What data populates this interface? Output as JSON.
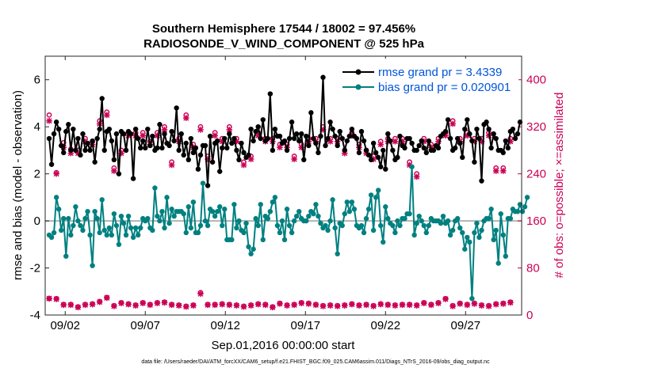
{
  "chart_data": {
    "type": "line",
    "title": "Southern Hemisphere 17544 / 18002 = 97.456%",
    "subtitle": "RADIOSONDE_V_WIND_COMPONENT @ 525 hPa",
    "xlabel": "Sep.01,2016 00:00:00 start",
    "ylabel": "rmse and bias (model - observation)",
    "y2label": "# of obs: o=possible; ×=assimilated",
    "footer": "data file: /Users/raeder/DAI/ATM_forcXX/CAM6_setup/f.e21.FHIST_BGC.f09_025.CAM6assim.011/Diags_NTrS_2016-09/obs_diag_output.nc",
    "xlim": [
      0.75,
      30.5
    ],
    "ylim": [
      -4,
      7
    ],
    "y2lim": [
      0,
      440
    ],
    "x_ticks": [
      2,
      7,
      12,
      17,
      22,
      27
    ],
    "x_tick_labels": [
      "09/02",
      "09/07",
      "09/12",
      "09/17",
      "09/22",
      "09/27"
    ],
    "y_ticks": [
      -4,
      -2,
      0,
      2,
      4,
      6
    ],
    "y2_ticks": [
      0,
      80,
      160,
      240,
      320,
      400
    ],
    "grid": false,
    "legend": {
      "position": "top-right",
      "entries": [
        "rmse grand pr = 3.4339",
        "bias grand pr = 0.020901"
      ]
    },
    "colors": {
      "rmse": "#000000",
      "bias": "#008080",
      "obs": "#cc0055",
      "legend_text": "#0055dd",
      "zero_line": "#b3b3b3"
    },
    "series": [
      {
        "name": "rmse",
        "y": [
          3.5,
          2.4,
          3.7,
          4.2,
          3.9,
          3.2,
          2.9,
          3.8,
          4.1,
          3.0,
          3.9,
          3.0,
          3.5,
          2.8,
          3.7,
          3.0,
          3.3,
          3.0,
          3.4,
          2.5,
          3.5,
          3.9,
          5.2,
          3.0,
          3.8,
          3.9,
          3.4,
          2.6,
          3.7,
          2.0,
          3.8,
          3.7,
          3.0,
          3.8,
          3.7,
          1.8,
          3.9,
          3.5,
          3.1,
          3.4,
          3.1,
          3.9,
          3.2,
          3.6,
          3.0,
          3.1,
          4.1,
          3.1,
          3.7,
          3.3,
          3.2,
          3.8,
          3.4,
          4.8,
          3.0,
          3.7,
          2.8,
          3.3,
          2.6,
          3.5,
          2.9,
          3.1,
          2.2,
          2.8,
          3.2,
          3.2,
          1.5,
          3.6,
          2.5,
          3.3,
          3.4,
          2.1,
          3.1,
          3.5,
          3.1,
          3.7,
          3.3,
          3.5,
          3.0,
          2.6,
          3.3,
          2.9,
          2.7,
          2.8,
          3.9,
          3.4,
          3.8,
          4.0,
          3.5,
          4.3,
          3.4,
          3.5,
          5.4,
          3.0,
          3.9,
          3.6,
          3.6,
          3.3,
          3.4,
          3.0,
          3.5,
          4.2,
          3.5,
          3.7,
          3.4,
          3.7,
          2.6,
          3.6,
          3.2,
          4.6,
          3.5,
          3.3,
          2.9,
          3.6,
          6.1,
          3.2,
          3.5,
          4.2,
          3.9,
          3.6,
          3.2,
          3.8,
          3.5,
          3.0,
          3.4,
          3.6,
          3.9,
          3.6,
          3.5,
          2.9,
          3.8,
          3.4,
          3.0,
          2.8,
          2.6,
          3.3,
          2.9,
          2.7,
          2.3,
          3.0,
          2.2,
          3.7,
          3.4,
          3.0,
          2.6,
          2.7,
          3.6,
          3.2,
          3.1,
          3.5,
          3.5,
          3.3,
          3.0,
          3.0,
          3.2,
          3.4,
          3.1,
          2.9,
          3.4,
          3.0,
          3.0,
          3.2,
          3.1,
          3.6,
          3.7,
          3.8,
          4.3,
          3.5,
          3.0,
          3.1,
          3.5,
          3.3,
          2.7,
          3.9,
          4.3,
          3.7,
          3.4,
          2.5,
          3.9,
          3.5,
          1.7,
          4.1,
          4.2,
          3.9,
          3.1,
          3.7,
          3.5,
          3.0,
          3.0,
          2.9,
          3.4,
          3.1,
          3.8,
          3.9,
          3.5,
          3.7,
          4.2
        ]
      },
      {
        "name": "bias",
        "y": [
          -0.6,
          -0.7,
          -0.5,
          1.0,
          0.5,
          -0.4,
          0.1,
          -1.5,
          0.1,
          -0.6,
          -0.2,
          0.6,
          0.0,
          -0.2,
          -0.4,
          0.1,
          0.4,
          -0.6,
          -1.9,
          0.4,
          0.1,
          -0.5,
          0.9,
          -0.4,
          -0.6,
          -0.3,
          -0.6,
          0.3,
          -0.2,
          -1.0,
          0.2,
          -0.1,
          -0.6,
          0.2,
          -0.3,
          -0.7,
          -0.3,
          -0.6,
          -0.3,
          0.1,
          0.0,
          0.1,
          -0.3,
          -0.4,
          1.4,
          0.2,
          0.0,
          0.4,
          -0.3,
          1.0,
          -0.1,
          0.5,
          0.2,
          0.4,
          0.4,
          0.4,
          0.3,
          -0.5,
          0.6,
          -0.3,
          0.8,
          -0.5,
          -0.5,
          -0.2,
          1.6,
          0.0,
          -0.2,
          0.5,
          0.4,
          0.2,
          0.4,
          0.6,
          -0.2,
          0.5,
          -0.8,
          -0.8,
          -0.8,
          0.7,
          -0.3,
          0.0,
          -0.4,
          -0.5,
          -0.1,
          -1.1,
          -1.4,
          -1.2,
          0.1,
          -0.2,
          0.7,
          -0.8,
          0.2,
          0.1,
          0.4,
          0.8,
          1.0,
          -0.2,
          -0.5,
          0.0,
          -0.8,
          0.5,
          -0.2,
          -0.5,
          0.0,
          0.2,
          0.4,
          0.1,
          0.0,
          0.0,
          0.2,
          0.4,
          0.3,
          0.7,
          0.2,
          -0.1,
          -0.3,
          -0.2,
          -0.4,
          0.0,
          0.9,
          -0.3,
          -1.4,
          -0.1,
          -0.2,
          0.3,
          0.8,
          0.4,
          0.8,
          0.5,
          -0.2,
          -0.3,
          -0.2,
          -0.5,
          0.1,
          0.5,
          1.1,
          -0.4,
          1.0,
          1.3,
          -0.2,
          -0.9,
          0.6,
          0.1,
          -0.1,
          -0.2,
          -0.5,
          0.0,
          -0.2,
          0.1,
          0.1,
          0.3,
          0.3,
          2.3,
          -0.6,
          -0.1,
          0.2,
          0.0,
          -0.2,
          -0.5,
          -0.2,
          0.1,
          0.0,
          0.0,
          0.0,
          -0.1,
          0.2,
          -0.1,
          0.0,
          -0.6,
          -0.4,
          0.0,
          0.1,
          -0.3,
          -0.5,
          -1.2,
          -0.7,
          -0.9,
          -3.3,
          -0.5,
          -0.1,
          -0.7,
          -0.4,
          0.0,
          0.1,
          0.1,
          0.5,
          -0.8,
          -0.4,
          -1.8,
          0.3,
          -0.6,
          -1.5,
          0.1,
          0.1,
          0.5,
          0.4,
          0.4,
          0.7,
          0.4,
          0.6,
          1.0
        ]
      }
    ],
    "obs_possible": [
      340,
      259,
      255,
      242,
      286,
      275,
      293,
      285,
      310,
      282,
      310,
      246,
      280,
      300,
      310,
      300,
      335,
      270,
      295,
      255,
      300,
      330,
      300,
      270,
      345,
      306,
      305,
      250,
      280,
      340,
      280,
      240,
      290,
      310,
      300,
      255,
      310,
      300,
      275,
      310,
      300,
      290,
      295,
      290,
      310,
      310,
      245,
      295,
      320,
      285,
      250,
      260,
      320,
      310,
      300,
      285,
      290,
      340,
      310,
      300,
      290,
      320,
      300,
      320,
      245,
      250,
      270,
      320,
      300,
      310,
      280,
      300,
      300,
      240,
      280,
      320,
      280,
      300,
      300,
      300,
      300,
      260,
      295,
      300,
      270,
      300,
      265,
      310,
      290,
      265,
      300,
      230,
      260,
      300,
      330,
      300,
      290,
      295,
      300,
      290,
      290,
      300,
      270,
      310,
      280,
      290,
      300,
      235,
      300,
      290,
      330,
      300,
      300,
      250,
      320,
      230,
      290,
      300,
      280,
      300,
      300,
      285,
      285,
      280,
      300,
      300,
      310,
      300,
      260,
      290,
      340,
      300,
      280,
      300,
      300,
      270,
      310,
      300,
      295,
      270,
      270,
      300,
      265,
      280,
      300,
      260,
      300,
      300,
      290,
      300,
      260,
      290,
      270,
      240,
      300,
      300,
      300,
      300,
      300,
      290,
      300,
      230,
      300,
      300,
      280,
      310,
      300,
      300,
      330,
      300,
      290,
      300,
      250,
      305,
      310,
      320,
      300,
      300,
      290,
      300,
      300,
      300,
      300,
      310,
      300,
      300,
      250,
      300,
      300,
      250,
      300,
      240,
      300,
      310
    ],
    "obs_assimilated": [
      330,
      255,
      250,
      240,
      280,
      270,
      285,
      275,
      300,
      275,
      305,
      240,
      275,
      295,
      300,
      295,
      330,
      265,
      290,
      250,
      295,
      325,
      295,
      265,
      340,
      300,
      300,
      245,
      275,
      335,
      275,
      235,
      285,
      305,
      295,
      250,
      305,
      295,
      270,
      305,
      295,
      285,
      290,
      285,
      305,
      305,
      240,
      290,
      315,
      280,
      245,
      255,
      315,
      305,
      295,
      280,
      285,
      335,
      305,
      295,
      285,
      315,
      295,
      315,
      240,
      245,
      265,
      315,
      295,
      305,
      275,
      295,
      295,
      235,
      275,
      315,
      275,
      295,
      295,
      295,
      295,
      255,
      290,
      295,
      265,
      295,
      260,
      305,
      285,
      260,
      295,
      225,
      255,
      295,
      325,
      295,
      285,
      290,
      295,
      285,
      285,
      295,
      265,
      305,
      275,
      285,
      295,
      230,
      295,
      285,
      325,
      295,
      295,
      245,
      315,
      225,
      285,
      295,
      275,
      295,
      295,
      280,
      280,
      275,
      295,
      295,
      305,
      295,
      255,
      285,
      335,
      295,
      275,
      295,
      295,
      265,
      305,
      295,
      290,
      265,
      265,
      295,
      260,
      275,
      295,
      255,
      295,
      295,
      285,
      295,
      255,
      285,
      265,
      235,
      295,
      295,
      295,
      295,
      295,
      285,
      295,
      225,
      295,
      295,
      275,
      305,
      295,
      295,
      325,
      295,
      285,
      295,
      245,
      300,
      305,
      315,
      295,
      295,
      285,
      295,
      295,
      295,
      295,
      305,
      295,
      295,
      245,
      295,
      295,
      245,
      295,
      235,
      295,
      305
    ],
    "obs_possible_low": [
      28,
      22,
      15,
      28,
      16,
      18,
      18,
      16,
      20,
      18,
      22,
      16,
      14,
      13,
      21,
      18,
      21,
      16,
      19,
      14,
      17,
      23,
      19,
      16,
      30,
      21,
      19,
      16,
      24,
      17,
      21,
      22,
      15,
      19,
      28,
      20,
      17,
      18,
      24,
      21,
      19,
      17,
      18,
      18,
      24,
      21,
      20,
      16,
      22,
      20,
      17,
      18,
      21,
      18,
      17,
      20,
      22,
      15,
      14,
      36,
      17,
      16,
      26,
      38,
      21,
      17,
      18,
      14,
      22,
      18,
      19,
      20,
      19,
      17,
      21,
      18,
      22,
      21,
      17,
      18,
      14,
      15,
      19,
      18,
      17,
      21,
      15,
      19,
      22,
      15,
      18,
      19,
      17,
      14,
      21,
      19,
      20,
      18,
      16,
      17,
      22,
      20,
      18,
      18,
      16,
      21,
      19,
      14,
      20,
      18,
      16,
      18,
      18,
      19,
      16,
      18,
      21,
      17,
      18,
      16,
      16,
      17,
      19,
      17,
      20,
      18,
      19,
      18,
      22,
      17,
      20,
      18,
      18,
      21,
      17,
      16,
      20,
      18,
      19,
      16,
      22,
      18,
      18,
      20,
      17,
      17,
      19,
      18,
      22,
      18,
      18,
      20,
      18,
      17,
      18,
      22,
      21,
      18,
      20,
      18,
      17,
      19,
      21,
      18,
      24,
      28,
      20,
      18,
      16,
      19,
      22,
      20,
      18,
      21,
      18,
      17,
      22,
      20,
      19,
      18,
      17,
      20,
      19,
      16,
      22,
      18,
      19,
      21,
      16,
      20,
      18,
      17,
      22,
      18
    ],
    "obs_assimilated_low": [
      28,
      22,
      14,
      27,
      15,
      17,
      17,
      15,
      19,
      17,
      21,
      15,
      13,
      12,
      20,
      17,
      20,
      15,
      18,
      13,
      16,
      22,
      18,
      15,
      29,
      20,
      18,
      15,
      23,
      16,
      20,
      21,
      14,
      18,
      27,
      19,
      16,
      17,
      23,
      20,
      18,
      16,
      17,
      17,
      23,
      20,
      19,
      15,
      21,
      19,
      16,
      17,
      20,
      17,
      16,
      19,
      21,
      14,
      13,
      35,
      16,
      15,
      25,
      36,
      20,
      16,
      17,
      13,
      21,
      17,
      18,
      19,
      18,
      16,
      20,
      17,
      21,
      20,
      16,
      17,
      13,
      14,
      18,
      17,
      16,
      20,
      14,
      18,
      21,
      14,
      17,
      18,
      16,
      13,
      20,
      18,
      19,
      17,
      15,
      16,
      21,
      19,
      17,
      17,
      15,
      20,
      18,
      13,
      19,
      17,
      15,
      17,
      17,
      18,
      15,
      17,
      20,
      16,
      17,
      15,
      15,
      16,
      18,
      16,
      19,
      17,
      18,
      17,
      21,
      16,
      19,
      17,
      17,
      20,
      16,
      15,
      19,
      17,
      18,
      15,
      21,
      17,
      17,
      19,
      16,
      16,
      18,
      17,
      21,
      17,
      17,
      19,
      17,
      16,
      17,
      21,
      20,
      17,
      19,
      17,
      16,
      18,
      20,
      17,
      23,
      27,
      19,
      17,
      15,
      18,
      21,
      19,
      17,
      20,
      17,
      16,
      21,
      19,
      18,
      17,
      16,
      19,
      18,
      15,
      21,
      17,
      18,
      20,
      15,
      19,
      17,
      16,
      21,
      17
    ]
  }
}
